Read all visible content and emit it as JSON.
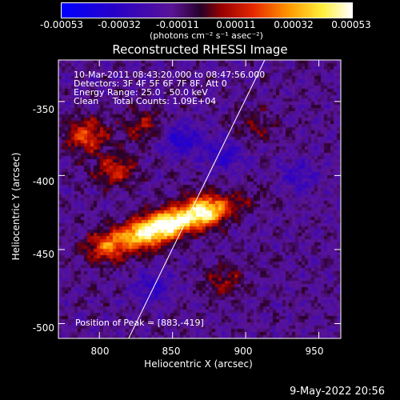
{
  "chart_data": {
    "type": "heatmap",
    "title": "Reconstructed RHESSI Image",
    "xlabel": "Heliocentric X (arcsec)",
    "ylabel": "Heliocentric Y (arcsec)",
    "xlim": [
      772,
      965
    ],
    "ylim": [
      -510,
      -322
    ],
    "xticks": [
      800,
      850,
      900,
      950
    ],
    "yticks": [
      -350,
      -400,
      -450,
      -500
    ],
    "colorbar": {
      "range": [
        -0.00053,
        0.00053
      ],
      "ticks": [
        "-0.00053",
        "-0.00032",
        "-0.00011",
        "0.00011",
        "0.00032",
        "0.00053"
      ],
      "label": "(photons cm⁻² s⁻¹ asec⁻²)"
    },
    "annotations": {
      "time": "10-Mar-2011 08:43:20.000 to 08:47:56.000",
      "detectors": "Detectors: 3F 4F 5F 6F 7F 8F, Att 0",
      "energy": "Energy Range: 25.0 - 50.0 keV",
      "clean": "Clean     Total Counts: 1.09E+04",
      "peak": "Position of Peak = [883,-419]"
    },
    "limb_line": [
      [
        820,
        -510
      ],
      [
        913,
        -322
      ]
    ],
    "bright_features": [
      {
        "x": 870,
        "y": -422,
        "level": 1.0
      },
      {
        "x": 845,
        "y": -432,
        "level": 0.9
      },
      {
        "x": 828,
        "y": -440,
        "level": 0.75
      },
      {
        "x": 805,
        "y": -448,
        "level": 0.7
      },
      {
        "x": 790,
        "y": -372,
        "level": 0.85
      },
      {
        "x": 810,
        "y": -395,
        "level": 0.7
      },
      {
        "x": 830,
        "y": -365,
        "level": 0.5
      },
      {
        "x": 885,
        "y": -470,
        "level": 0.45
      },
      {
        "x": 905,
        "y": -365,
        "level": 0.35
      }
    ],
    "dark_features": [
      {
        "x": 855,
        "y": -375,
        "level": -0.6
      },
      {
        "x": 885,
        "y": -385,
        "level": -0.5
      },
      {
        "x": 835,
        "y": -475,
        "level": -0.45
      },
      {
        "x": 935,
        "y": -400,
        "level": -0.4
      }
    ]
  },
  "footer": {
    "date": "9-May-2022 20:56"
  }
}
